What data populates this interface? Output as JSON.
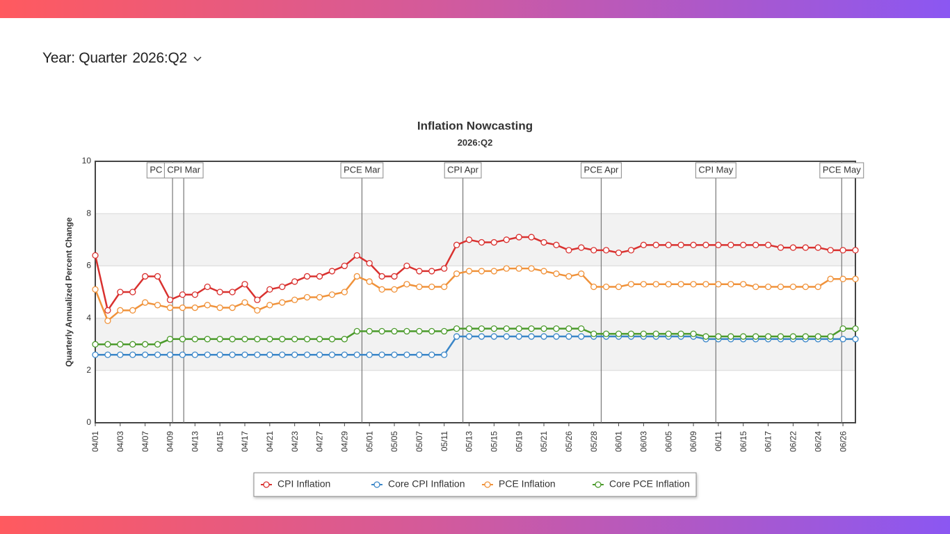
{
  "controls": {
    "label": "Year: Quarter",
    "value": "2026:Q2"
  },
  "chart_data": {
    "type": "line",
    "title": "Inflation Nowcasting",
    "subtitle": "2026:Q2",
    "y_label": "Quarterly Annualized Percent Change",
    "categories": [
      "04/01",
      null,
      "04/03",
      null,
      "04/07",
      null,
      "04/09",
      null,
      "04/13",
      null,
      "04/15",
      null,
      "04/17",
      null,
      "04/21",
      null,
      "04/23",
      null,
      "04/27",
      null,
      "04/29",
      null,
      "05/01",
      null,
      "05/05",
      null,
      "05/07",
      null,
      "05/11",
      null,
      "05/13",
      null,
      "05/15",
      null,
      "05/19",
      null,
      "05/21",
      null,
      "05/26",
      null,
      "05/28",
      null,
      "06/01",
      null,
      "06/03",
      null,
      "06/05",
      null,
      "06/09",
      null,
      "06/11",
      null,
      "06/15",
      null,
      "06/17",
      null,
      "06/22",
      null,
      "06/24",
      null,
      "06/26",
      null
    ],
    "series": [
      {
        "name": "CPI Inflation",
        "color": "#d9312f",
        "values": [
          6.4,
          4.3,
          5.0,
          5.0,
          5.6,
          5.6,
          4.7,
          4.9,
          4.9,
          5.2,
          5.0,
          5.0,
          5.3,
          4.7,
          5.1,
          5.2,
          5.4,
          5.6,
          5.6,
          5.8,
          6.0,
          6.4,
          6.1,
          5.6,
          5.6,
          6.0,
          5.8,
          5.8,
          5.9,
          6.8,
          7.0,
          6.9,
          6.9,
          7.0,
          7.1,
          7.1,
          6.9,
          6.8,
          6.6,
          6.7,
          6.6,
          6.6,
          6.5,
          6.6,
          6.8,
          6.8,
          6.8,
          6.8,
          6.8,
          6.8,
          6.8,
          6.8,
          6.8,
          6.8,
          6.8,
          6.7,
          6.7,
          6.7,
          6.7,
          6.6,
          6.6,
          6.6
        ]
      },
      {
        "name": "Core CPI Inflation",
        "color": "#3a86c8",
        "values": [
          2.6,
          2.6,
          2.6,
          2.6,
          2.6,
          2.6,
          2.6,
          2.6,
          2.6,
          2.6,
          2.6,
          2.6,
          2.6,
          2.6,
          2.6,
          2.6,
          2.6,
          2.6,
          2.6,
          2.6,
          2.6,
          2.6,
          2.6,
          2.6,
          2.6,
          2.6,
          2.6,
          2.6,
          2.6,
          3.3,
          3.3,
          3.3,
          3.3,
          3.3,
          3.3,
          3.3,
          3.3,
          3.3,
          3.3,
          3.3,
          3.3,
          3.3,
          3.3,
          3.3,
          3.3,
          3.3,
          3.3,
          3.3,
          3.3,
          3.2,
          3.2,
          3.2,
          3.2,
          3.2,
          3.2,
          3.2,
          3.2,
          3.2,
          3.2,
          3.2,
          3.2,
          3.2
        ]
      },
      {
        "name": "PCE Inflation",
        "color": "#f0923a",
        "values": [
          5.1,
          3.9,
          4.3,
          4.3,
          4.6,
          4.5,
          4.4,
          4.4,
          4.4,
          4.5,
          4.4,
          4.4,
          4.6,
          4.3,
          4.5,
          4.6,
          4.7,
          4.8,
          4.8,
          4.9,
          5.0,
          5.6,
          5.4,
          5.1,
          5.1,
          5.3,
          5.2,
          5.2,
          5.2,
          5.7,
          5.8,
          5.8,
          5.8,
          5.9,
          5.9,
          5.9,
          5.8,
          5.7,
          5.6,
          5.7,
          5.2,
          5.2,
          5.2,
          5.3,
          5.3,
          5.3,
          5.3,
          5.3,
          5.3,
          5.3,
          5.3,
          5.3,
          5.3,
          5.2,
          5.2,
          5.2,
          5.2,
          5.2,
          5.2,
          5.5,
          5.5,
          5.5
        ]
      },
      {
        "name": "Core PCE Inflation",
        "color": "#4a9a2a",
        "values": [
          3.0,
          3.0,
          3.0,
          3.0,
          3.0,
          3.0,
          3.2,
          3.2,
          3.2,
          3.2,
          3.2,
          3.2,
          3.2,
          3.2,
          3.2,
          3.2,
          3.2,
          3.2,
          3.2,
          3.2,
          3.2,
          3.5,
          3.5,
          3.5,
          3.5,
          3.5,
          3.5,
          3.5,
          3.5,
          3.6,
          3.6,
          3.6,
          3.6,
          3.6,
          3.6,
          3.6,
          3.6,
          3.6,
          3.6,
          3.6,
          3.4,
          3.4,
          3.4,
          3.4,
          3.4,
          3.4,
          3.4,
          3.4,
          3.4,
          3.3,
          3.3,
          3.3,
          3.3,
          3.3,
          3.3,
          3.3,
          3.3,
          3.3,
          3.3,
          3.3,
          3.6,
          3.6
        ]
      }
    ],
    "annotations": [
      {
        "x": 6.2,
        "label": "PC"
      },
      {
        "x": 7.1,
        "label": "CPI Mar"
      },
      {
        "x": 21.4,
        "label": "PCE Mar"
      },
      {
        "x": 29.5,
        "label": "CPI Apr"
      },
      {
        "x": 40.6,
        "label": "PCE Apr"
      },
      {
        "x": 49.8,
        "label": "CPI May"
      },
      {
        "x": 59.9,
        "label": "PCE May"
      }
    ],
    "ylim": [
      0,
      10
    ],
    "yticks": [
      0,
      2,
      4,
      6,
      8,
      10
    ],
    "grid": true,
    "banded": true,
    "legend": "bottom"
  }
}
